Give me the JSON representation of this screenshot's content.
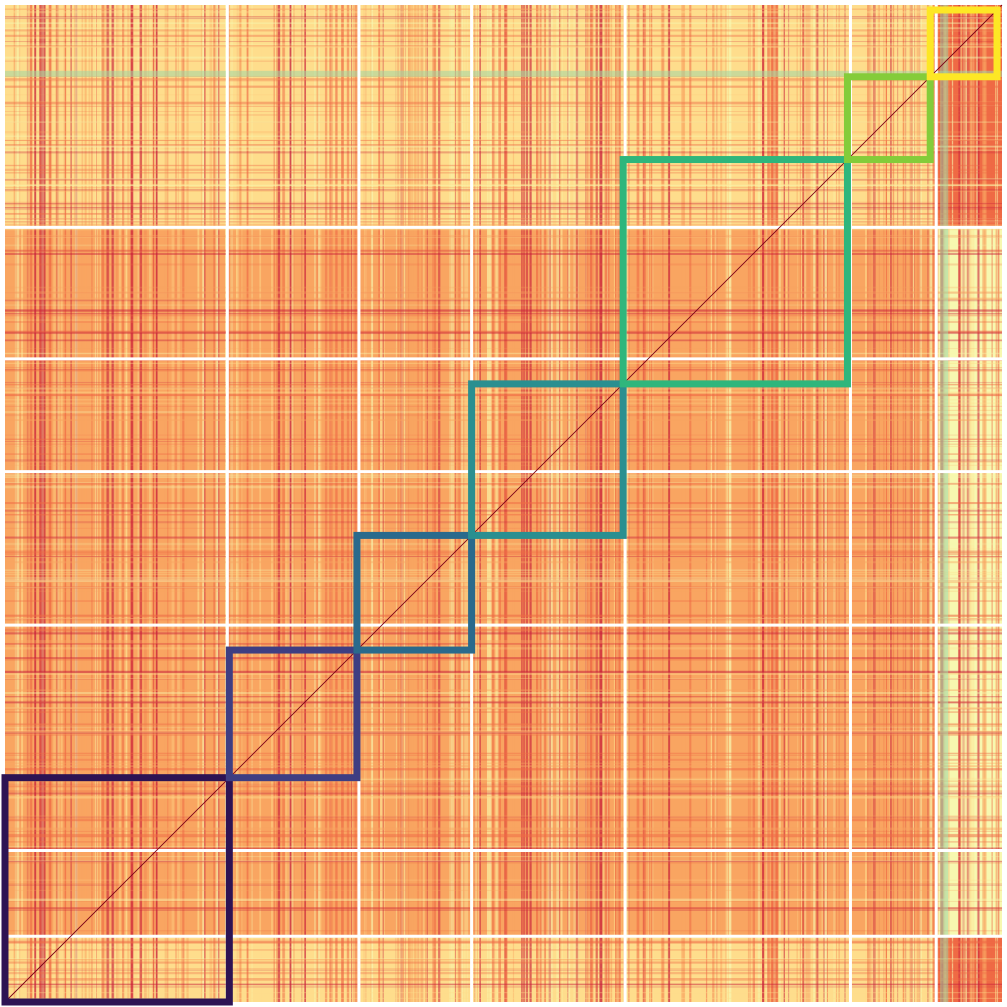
{
  "chart_data": {
    "type": "heatmap",
    "title": "",
    "xlabel": "",
    "ylabel": "",
    "matrix_size": 1000,
    "cluster_boundaries": [
      0,
      223,
      355,
      468,
      622,
      848,
      934,
      1000
    ],
    "blocks": [
      {
        "cluster": 1,
        "start": 775,
        "end": 1000,
        "border_color": "#2d1353"
      },
      {
        "cluster": 2,
        "start": 647,
        "end": 775,
        "border_color": "#3e3e82"
      },
      {
        "cluster": 3,
        "start": 532,
        "end": 647,
        "border_color": "#2a6a8c"
      },
      {
        "cluster": 4,
        "start": 380,
        "end": 532,
        "border_color": "#2a8f90"
      },
      {
        "cluster": 5,
        "start": 155,
        "end": 380,
        "border_color": "#2fb67c"
      },
      {
        "cluster": 6,
        "start": 72,
        "end": 155,
        "border_color": "#84cc3a"
      },
      {
        "cluster": 7,
        "start": 5,
        "end": 72,
        "border_color": "#fde725"
      }
    ],
    "colormap": "Spectral_r",
    "colors": {
      "high": "#c9203a",
      "mid_high": "#ef6a45",
      "mid": "#f9a561",
      "mid_low": "#fedd8c",
      "low": "#f7f8b0",
      "lowest": "#9ed6a4",
      "separator": "#ffffff",
      "diagonal": "#7a0017"
    },
    "grid": false,
    "legend": "none"
  }
}
